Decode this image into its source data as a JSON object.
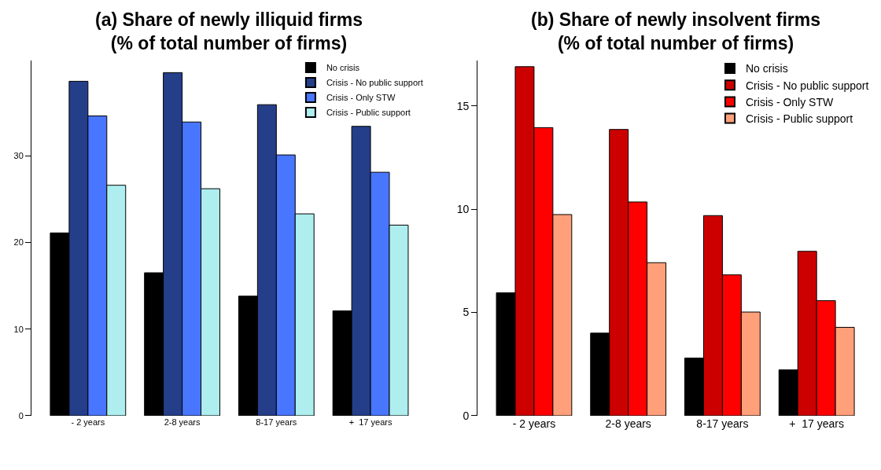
{
  "chart_data": [
    {
      "type": "bar",
      "title": "(a) Share of newly illiquid firms\n(% of total number of firms)",
      "categories": [
        "- 2 years",
        "2-8 years",
        "8-17 years",
        "+  17 years"
      ],
      "ylim": [
        0,
        41
      ],
      "yticks": [
        0,
        10,
        20,
        30
      ],
      "legend": "top right",
      "series": [
        {
          "name": "No crisis",
          "color": "#000000",
          "values": [
            21.1,
            16.5,
            13.8,
            12.1
          ]
        },
        {
          "name": "Crisis - No public support",
          "color": "#253e8a",
          "values": [
            38.6,
            39.6,
            35.9,
            33.4
          ]
        },
        {
          "name": "Crisis - Only STW",
          "color": "#4876ff",
          "values": [
            34.6,
            33.9,
            30.1,
            28.1
          ]
        },
        {
          "name": "Crisis - Public support",
          "color": "#aeeeee",
          "values": [
            26.6,
            26.2,
            23.3,
            22.0
          ]
        }
      ]
    },
    {
      "type": "bar",
      "title": "(b) Share of newly insolvent firms\n(% of total number of firms)",
      "categories": [
        "- 2 years",
        "2-8 years",
        "8-17 years",
        "+  17 years"
      ],
      "ylim": [
        0,
        17.2
      ],
      "yticks": [
        0,
        5,
        10,
        15
      ],
      "legend": "top right",
      "series": [
        {
          "name": "No crisis",
          "color": "#000000",
          "values": [
            5.95,
            4.0,
            2.79,
            2.22
          ]
        },
        {
          "name": "Crisis - No public support",
          "color": "#cd0000",
          "values": [
            16.9,
            13.86,
            9.69,
            7.96
          ]
        },
        {
          "name": "Crisis - Only STW",
          "color": "#ff0000",
          "values": [
            13.95,
            10.35,
            6.82,
            5.57
          ]
        },
        {
          "name": "Crisis - Public support",
          "color": "#ffa07a",
          "values": [
            9.74,
            7.41,
            5.02,
            4.28
          ]
        }
      ]
    }
  ]
}
